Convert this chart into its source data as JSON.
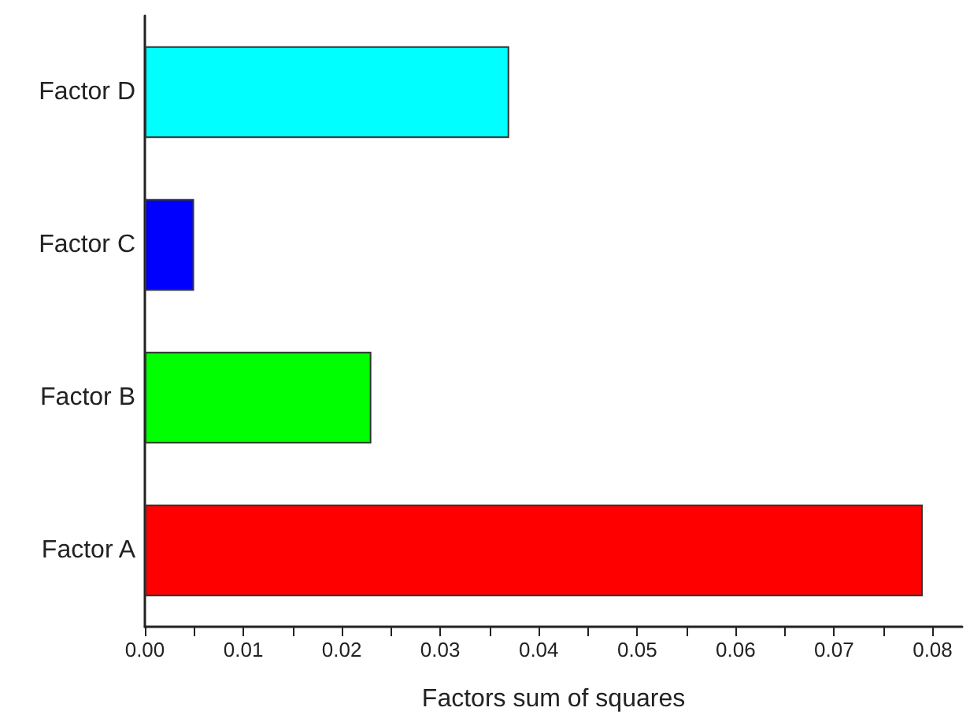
{
  "chart_data": {
    "type": "bar",
    "orientation": "horizontal",
    "xlabel": "Factors sum of squares",
    "categories": [
      "Factor D",
      "Factor C",
      "Factor B",
      "Factor A"
    ],
    "values": [
      0.037,
      0.005,
      0.023,
      0.079
    ],
    "colors": [
      "#00ffff",
      "#0000ff",
      "#00ff00",
      "#ff0000"
    ],
    "xlim": [
      0,
      0.083
    ],
    "xticks": [
      {
        "value": 0,
        "label": "0.00"
      },
      {
        "value": 0.005,
        "label": null
      },
      {
        "value": 0.01,
        "label": "0.01"
      },
      {
        "value": 0.015,
        "label": null
      },
      {
        "value": 0.02,
        "label": "0.02"
      },
      {
        "value": 0.025,
        "label": null
      },
      {
        "value": 0.03,
        "label": "0.03"
      },
      {
        "value": 0.035,
        "label": null
      },
      {
        "value": 0.04,
        "label": "0.04"
      },
      {
        "value": 0.045,
        "label": null
      },
      {
        "value": 0.05,
        "label": "0.05"
      },
      {
        "value": 0.055,
        "label": null
      },
      {
        "value": 0.06,
        "label": "0.06"
      },
      {
        "value": 0.065,
        "label": null
      },
      {
        "value": 0.07,
        "label": "0.07"
      },
      {
        "value": 0.075,
        "label": null
      },
      {
        "value": 0.08,
        "label": "0.08"
      }
    ],
    "grid": false
  }
}
